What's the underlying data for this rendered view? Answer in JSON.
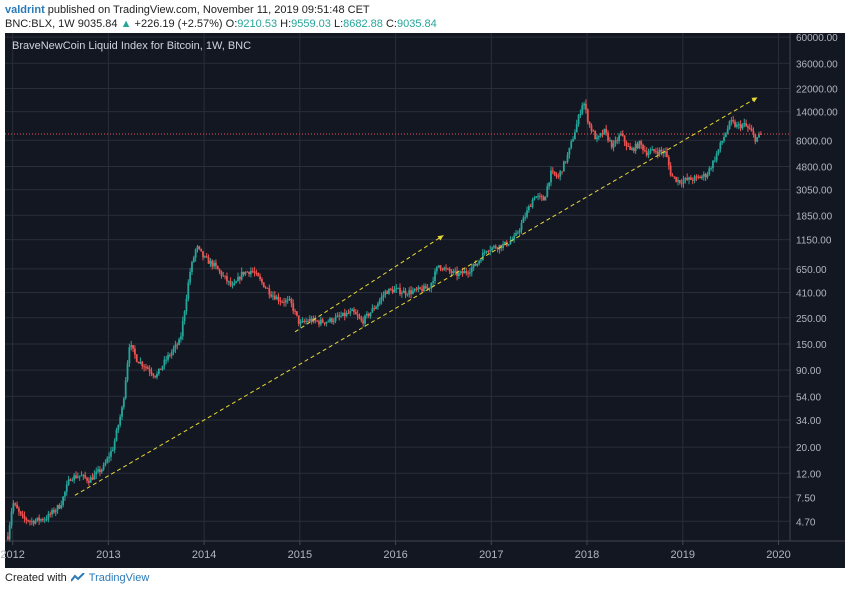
{
  "header": {
    "username": "valdrint",
    "published_text": "published on TradingView.com, November 11, 2019 09:51:48 CET"
  },
  "ohlc": {
    "symbol": "BNC:BLX, 1W",
    "last": "9035.84",
    "change": "+226.19 (+2.57%)",
    "open_label": "O:",
    "open": "9210.53",
    "high_label": "H:",
    "high": "9559.03",
    "low_label": "L:",
    "low": "8682.88",
    "close_label": "C:",
    "close": "9035.84"
  },
  "footer": {
    "created_with": "Created with",
    "brand": "TradingView"
  },
  "colors": {
    "bg": "#131722",
    "up": "#26a69a",
    "down": "#ef5350",
    "grid": "#2a2e39",
    "trend": "#e8d834",
    "price_line": "#ef5350"
  },
  "chart_data": {
    "type": "candlestick",
    "title": "BraveNewCoin Liquid Index for Bitcoin, 1W, BNC",
    "y_scale": "log",
    "ylim": [
      3.2,
      65000
    ],
    "xlim": [
      2011.92,
      2020.12
    ],
    "y_ticks": [
      "60000.00",
      "36000.00",
      "22000.00",
      "14000.00",
      "8000.00",
      "4800.00",
      "3050.00",
      "1850.00",
      "1150.00",
      "650.00",
      "410.00",
      "250.00",
      "150.00",
      "90.00",
      "54.00",
      "34.00",
      "20.00",
      "12.00",
      "7.50",
      "4.70"
    ],
    "x_ticks": [
      "2012",
      "2013",
      "2014",
      "2015",
      "2016",
      "2017",
      "2018",
      "2019",
      "2020"
    ],
    "current_price": "9035.84",
    "price_path": [
      [
        2011.95,
        3.5
      ],
      [
        2012.0,
        6.8
      ],
      [
        2012.1,
        5.0
      ],
      [
        2012.2,
        4.7
      ],
      [
        2012.35,
        5.0
      ],
      [
        2012.5,
        6.5
      ],
      [
        2012.6,
        11.0
      ],
      [
        2012.7,
        11.5
      ],
      [
        2012.8,
        10.5
      ],
      [
        2012.95,
        13.5
      ],
      [
        2013.05,
        20.0
      ],
      [
        2013.15,
        45.0
      ],
      [
        2013.22,
        150.0
      ],
      [
        2013.3,
        110.0
      ],
      [
        2013.4,
        95.0
      ],
      [
        2013.5,
        80.0
      ],
      [
        2013.6,
        110.0
      ],
      [
        2013.75,
        160.0
      ],
      [
        2013.85,
        600.0
      ],
      [
        2013.92,
        1000.0
      ],
      [
        2014.0,
        800.0
      ],
      [
        2014.1,
        700.0
      ],
      [
        2014.2,
        560.0
      ],
      [
        2014.3,
        450.0
      ],
      [
        2014.4,
        600.0
      ],
      [
        2014.5,
        630.0
      ],
      [
        2014.6,
        500.0
      ],
      [
        2014.7,
        400.0
      ],
      [
        2014.8,
        350.0
      ],
      [
        2014.9,
        340.0
      ],
      [
        2015.0,
        220.0
      ],
      [
        2015.1,
        240.0
      ],
      [
        2015.2,
        230.0
      ],
      [
        2015.3,
        235.0
      ],
      [
        2015.45,
        260.0
      ],
      [
        2015.55,
        280.0
      ],
      [
        2015.65,
        230.0
      ],
      [
        2015.8,
        320.0
      ],
      [
        2015.9,
        420.0
      ],
      [
        2016.0,
        430.0
      ],
      [
        2016.1,
        410.0
      ],
      [
        2016.2,
        420.0
      ],
      [
        2016.35,
        450.0
      ],
      [
        2016.45,
        700.0
      ],
      [
        2016.55,
        620.0
      ],
      [
        2016.65,
        580.0
      ],
      [
        2016.75,
        620.0
      ],
      [
        2016.85,
        720.0
      ],
      [
        2016.95,
        960.0
      ],
      [
        2017.05,
        1000.0
      ],
      [
        2017.15,
        1050.0
      ],
      [
        2017.25,
        1200.0
      ],
      [
        2017.35,
        1800.0
      ],
      [
        2017.45,
        2700.0
      ],
      [
        2017.55,
        2500.0
      ],
      [
        2017.62,
        4200.0
      ],
      [
        2017.7,
        3900.0
      ],
      [
        2017.8,
        6000.0
      ],
      [
        2017.88,
        10000.0
      ],
      [
        2017.96,
        17500.0
      ],
      [
        2018.02,
        11000.0
      ],
      [
        2018.1,
        8000.0
      ],
      [
        2018.18,
        9500.0
      ],
      [
        2018.27,
        7000.0
      ],
      [
        2018.35,
        9000.0
      ],
      [
        2018.45,
        6500.0
      ],
      [
        2018.55,
        7500.0
      ],
      [
        2018.62,
        6300.0
      ],
      [
        2018.72,
        6500.0
      ],
      [
        2018.82,
        6300.0
      ],
      [
        2018.88,
        4000.0
      ],
      [
        2018.96,
        3600.0
      ],
      [
        2019.05,
        3700.0
      ],
      [
        2019.15,
        3800.0
      ],
      [
        2019.25,
        4100.0
      ],
      [
        2019.33,
        5500.0
      ],
      [
        2019.42,
        8200.0
      ],
      [
        2019.5,
        11500.0
      ],
      [
        2019.56,
        10500.0
      ],
      [
        2019.64,
        10800.0
      ],
      [
        2019.7,
        9800.0
      ],
      [
        2019.76,
        8200.0
      ],
      [
        2019.83,
        9035.84
      ]
    ],
    "trendlines": [
      {
        "from": [
          2012.65,
          7.8
        ],
        "to": [
          2019.78,
          18500.0
        ],
        "arrow": true
      },
      {
        "from": [
          2014.95,
          190.0
        ],
        "to": [
          2016.5,
          1250.0
        ],
        "arrow": true
      }
    ]
  }
}
